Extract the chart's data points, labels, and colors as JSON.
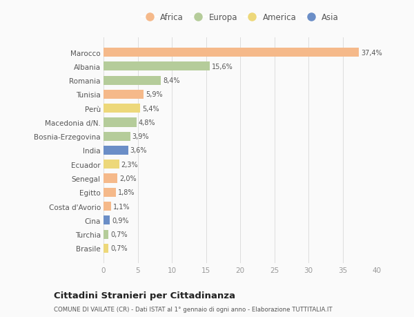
{
  "countries": [
    "Marocco",
    "Albania",
    "Romania",
    "Tunisia",
    "Perù",
    "Macedonia d/N.",
    "Bosnia-Erzegovina",
    "India",
    "Ecuador",
    "Senegal",
    "Egitto",
    "Costa d'Avorio",
    "Cina",
    "Turchia",
    "Brasile"
  ],
  "values": [
    37.4,
    15.6,
    8.4,
    5.9,
    5.4,
    4.8,
    3.9,
    3.6,
    2.3,
    2.0,
    1.8,
    1.1,
    0.9,
    0.7,
    0.7
  ],
  "labels": [
    "37,4%",
    "15,6%",
    "8,4%",
    "5,9%",
    "5,4%",
    "4,8%",
    "3,9%",
    "3,6%",
    "2,3%",
    "2,0%",
    "1,8%",
    "1,1%",
    "0,9%",
    "0,7%",
    "0,7%"
  ],
  "continents": [
    "Africa",
    "Europa",
    "Europa",
    "Africa",
    "America",
    "Europa",
    "Europa",
    "Asia",
    "America",
    "Africa",
    "Africa",
    "Africa",
    "Asia",
    "Europa",
    "America"
  ],
  "colors": {
    "Africa": "#F5B98A",
    "Europa": "#B5CC9A",
    "America": "#EDD87A",
    "Asia": "#6B8EC7"
  },
  "title_main": "Cittadini Stranieri per Cittadinanza",
  "title_sub": "COMUNE DI VAILATE (CR) - Dati ISTAT al 1° gennaio di ogni anno - Elaborazione TUTTITALIA.IT",
  "xlim": [
    0,
    40
  ],
  "xticks": [
    0,
    5,
    10,
    15,
    20,
    25,
    30,
    35,
    40
  ],
  "background_color": "#FAFAFA",
  "bar_height": 0.65,
  "legend_order": [
    "Africa",
    "Europa",
    "America",
    "Asia"
  ]
}
